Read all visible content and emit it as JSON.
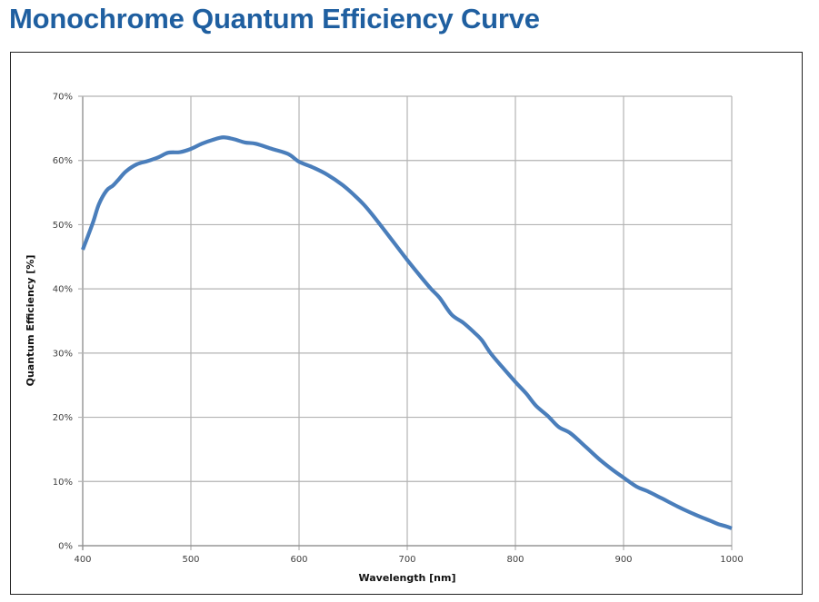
{
  "page": {
    "title": "Monochrome Quantum Efficiency Curve",
    "title_color": "#1f5fa0"
  },
  "chart_data": {
    "type": "line",
    "title": "Monochrome Quantum Efficiency Curve",
    "xlabel": "Wavelength [nm]",
    "ylabel": "Quantum Efficiency [%]",
    "xlim": [
      400,
      1000
    ],
    "ylim": [
      0,
      70
    ],
    "x_ticks": [
      400,
      500,
      600,
      700,
      800,
      900,
      1000
    ],
    "x_tick_labels": [
      "400",
      "500",
      "600",
      "700",
      "800",
      "900",
      "1000"
    ],
    "y_ticks": [
      0,
      10,
      20,
      30,
      40,
      50,
      60,
      70
    ],
    "y_tick_labels": [
      "0%",
      "10%",
      "20%",
      "30%",
      "40%",
      "50%",
      "60%",
      "70%"
    ],
    "grid": true,
    "legend": "none",
    "line_color": "#4a7ebb",
    "grid_color": "#b3b3b3",
    "series": [
      {
        "name": "Quantum Efficiency",
        "x": [
          400,
          405,
          410,
          415,
          422,
          428,
          433,
          440,
          450,
          460,
          470,
          479,
          490,
          500,
          510,
          520,
          530,
          540,
          550,
          560,
          575,
          590,
          600,
          613,
          626,
          640,
          651,
          660,
          668,
          680,
          690,
          700,
          712,
          722,
          730,
          741,
          752,
          762,
          769,
          777,
          788,
          800,
          810,
          819,
          830,
          840,
          851,
          865,
          878,
          890,
          900,
          912,
          922,
          935,
          950,
          960,
          971,
          980,
          987,
          995,
          1000
        ],
        "y": [
          46.1,
          48.3,
          50.6,
          53.2,
          55.3,
          56.1,
          57.0,
          58.3,
          59.4,
          59.9,
          60.5,
          61.2,
          61.3,
          61.8,
          62.6,
          63.2,
          63.6,
          63.3,
          62.8,
          62.6,
          61.8,
          61.0,
          59.8,
          58.9,
          57.8,
          56.2,
          54.6,
          53.1,
          51.5,
          48.9,
          46.7,
          44.5,
          42.0,
          40.0,
          38.6,
          36.0,
          34.7,
          33.2,
          32.0,
          30.0,
          27.8,
          25.5,
          23.7,
          21.8,
          20.2,
          18.5,
          17.5,
          15.4,
          13.4,
          11.8,
          10.6,
          9.2,
          8.5,
          7.4,
          6.1,
          5.3,
          4.5,
          3.9,
          3.4,
          3.0,
          2.7
        ]
      }
    ]
  }
}
